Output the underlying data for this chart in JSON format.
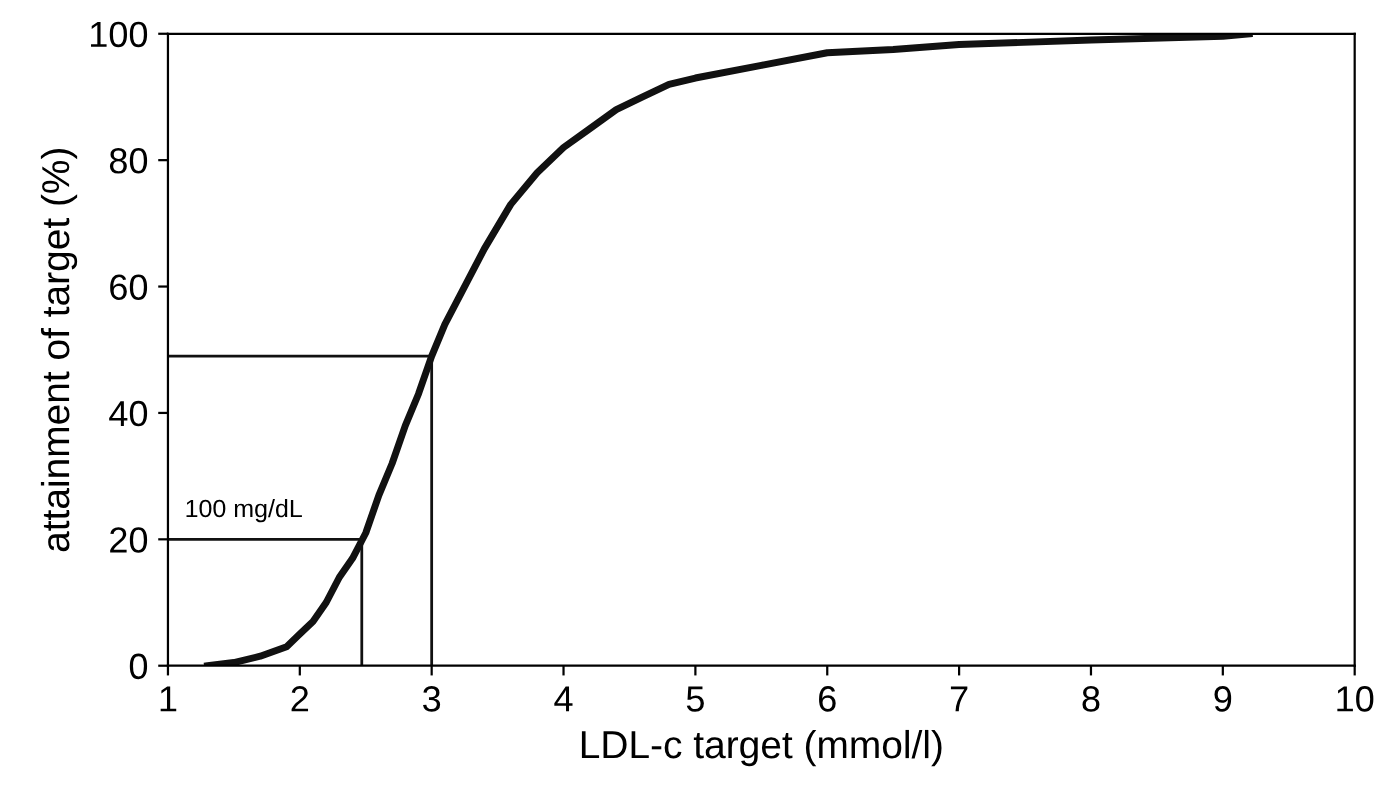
{
  "chart_data": {
    "type": "line",
    "xlabel": "LDL-c target (mmol/l)",
    "ylabel": "attainment of target (%)",
    "xlim": [
      1,
      10
    ],
    "xticks": [
      1,
      2,
      3,
      4,
      5,
      6,
      7,
      8,
      9,
      10
    ],
    "ylim": [
      0,
      100
    ],
    "yticks": [
      0,
      20,
      40,
      60,
      80,
      100
    ],
    "grid": false,
    "legend": false,
    "series": [
      {
        "color": "#111111",
        "x": [
          1.3,
          1.5,
          1.7,
          1.9,
          2.0,
          2.1,
          2.2,
          2.3,
          2.4,
          2.5,
          2.6,
          2.7,
          2.8,
          2.9,
          3.0,
          3.1,
          3.2,
          3.4,
          3.6,
          3.8,
          4.0,
          4.2,
          4.4,
          4.6,
          4.8,
          5.0,
          5.5,
          6.0,
          6.5,
          7.0,
          8.0,
          9.0,
          9.2
        ],
        "values": [
          0,
          0.5,
          1.5,
          3,
          5,
          7,
          10,
          14,
          17,
          21,
          27,
          32,
          38,
          43,
          49,
          54,
          58,
          66,
          73,
          78,
          82,
          85,
          88,
          90,
          92,
          93,
          95,
          97,
          97.5,
          98.3,
          99,
          99.6,
          100
        ]
      },
      {
        "color": "#111111",
        "x": [
          1,
          2.47,
          2.47
        ],
        "values": [
          20,
          20,
          0
        ]
      },
      {
        "color": "#111111",
        "x": [
          1,
          3.0,
          3.0
        ],
        "values": [
          49,
          49,
          0
        ]
      }
    ],
    "annotations": [
      {
        "text": "100 mg/dL",
        "x": 1,
        "y": 20
      }
    ]
  }
}
